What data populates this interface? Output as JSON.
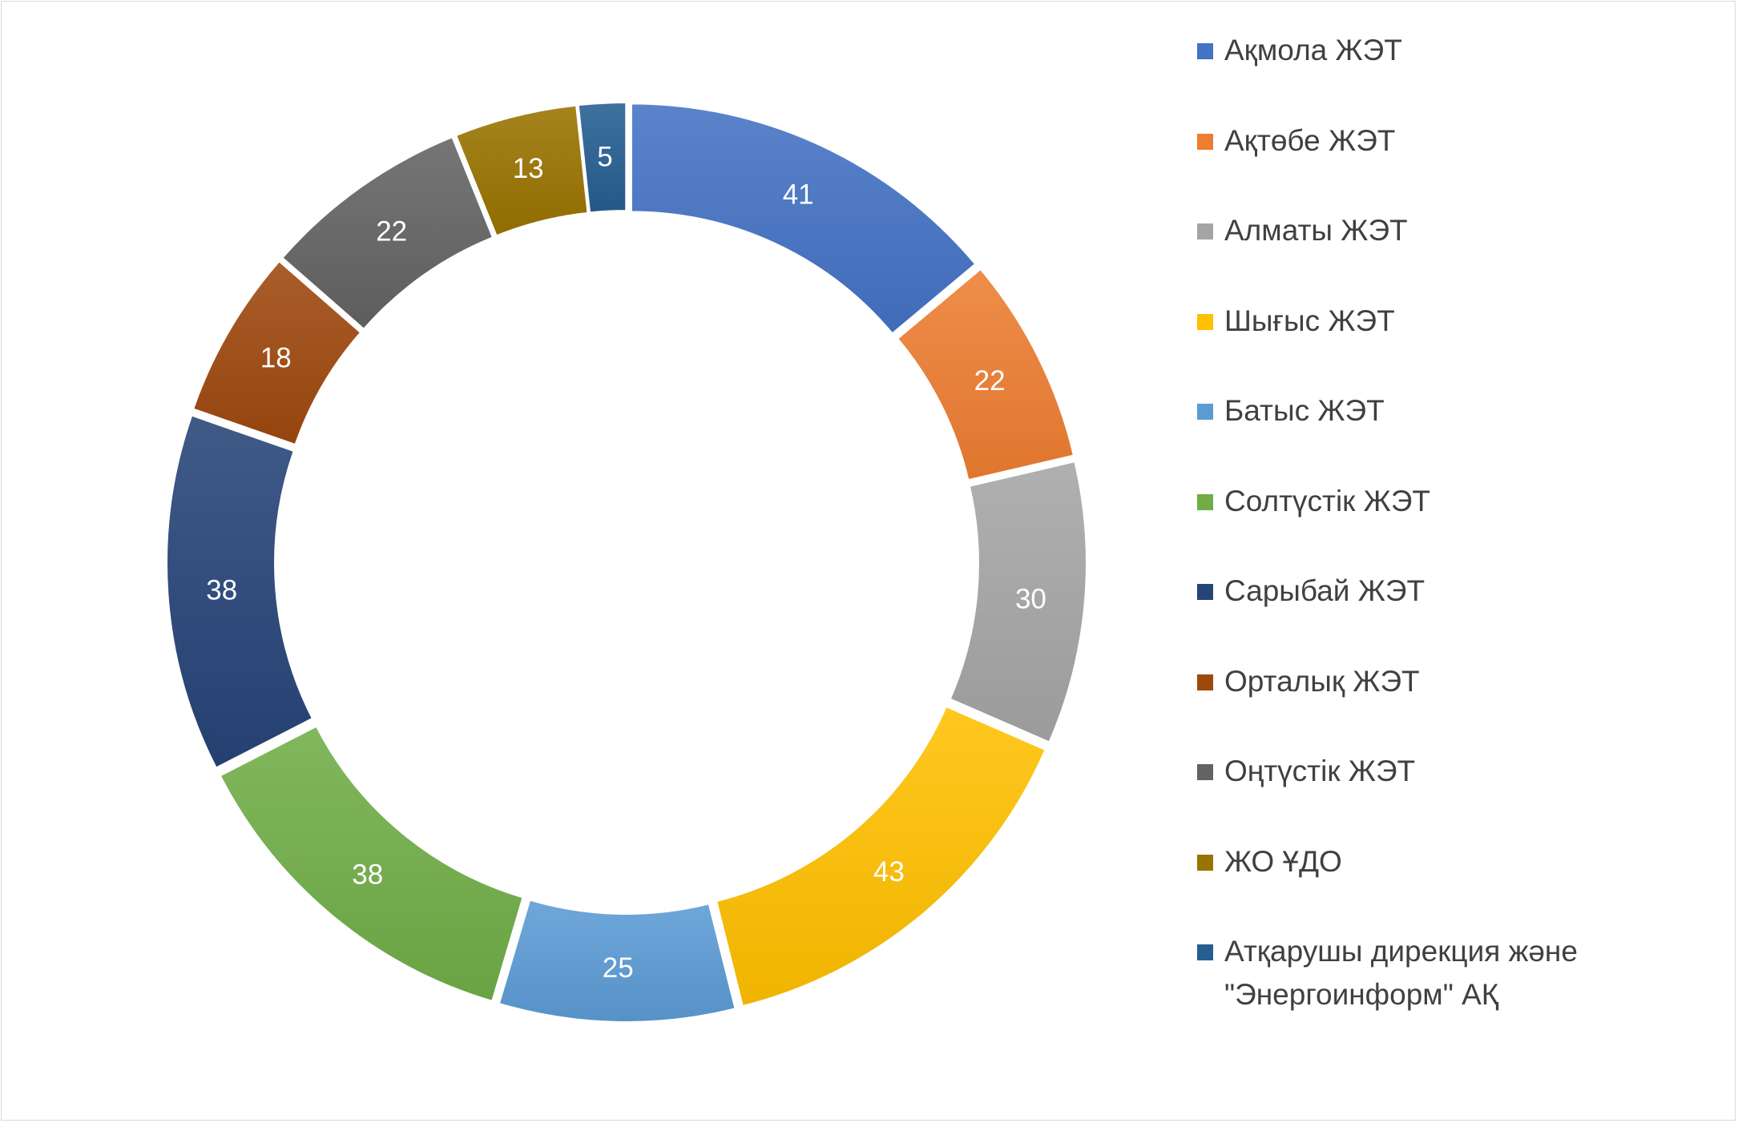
{
  "chart_data": {
    "type": "pie",
    "variant": "doughnut",
    "title": "",
    "legend_position": "right",
    "series": [
      {
        "labels": [
          "Ақмола ЖЭТ",
          "Ақтөбе ЖЭТ",
          "Алматы ЖЭТ",
          "Шығыс ЖЭТ",
          "Батыс ЖЭТ",
          "Солтүстік ЖЭТ",
          "Сарыбай ЖЭТ",
          "Орталық ЖЭТ",
          "Оңтүстік ЖЭТ",
          "ЖО ҰДО",
          "Атқарушы дирекция және \"Энергоинформ\" АҚ"
        ],
        "values": [
          41,
          22,
          30,
          43,
          25,
          38,
          38,
          18,
          22,
          13,
          5
        ],
        "colors": [
          "#4472c4",
          "#ed7d31",
          "#a5a5a5",
          "#ffc000",
          "#5b9bd5",
          "#70ad47",
          "#264478",
          "#9e480e",
          "#636363",
          "#997300",
          "#255e91"
        ]
      }
    ],
    "legend_lines": [
      [
        "Ақмола ЖЭТ"
      ],
      [
        "Ақтөбе ЖЭТ"
      ],
      [
        "Алматы ЖЭТ"
      ],
      [
        "Шығыс ЖЭТ"
      ],
      [
        "Батыс ЖЭТ"
      ],
      [
        "Солтүстік ЖЭТ"
      ],
      [
        "Сарыбай ЖЭТ"
      ],
      [
        "Орталық ЖЭТ"
      ],
      [
        "Оңтүстік ЖЭТ"
      ],
      [
        "ЖО ҰДО"
      ],
      [
        "Атқарушы дирекция және",
        "\"Энергоинформ\" АҚ"
      ]
    ],
    "data_labels": true
  }
}
